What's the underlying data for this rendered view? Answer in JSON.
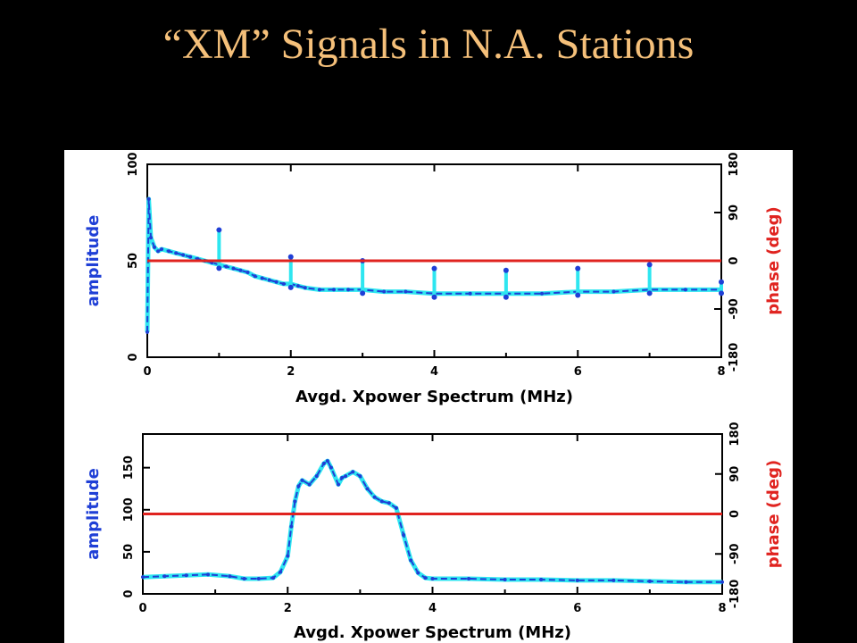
{
  "slide": {
    "title": "“XM” Signals in N.A. Stations"
  },
  "colors": {
    "title": "#f5c07a",
    "amplitude_dark": "#1f3fd6",
    "amplitude_light": "#2ee6f0",
    "phase": "#e0231f",
    "axis": "#000000"
  },
  "chart_data": [
    {
      "type": "line",
      "xlabel": "Avgd. Xpower Spectrum (MHz)",
      "ylabel": "amplitude",
      "y2label": "phase (deg)",
      "xlim": [
        0,
        8
      ],
      "ylim": [
        0,
        100
      ],
      "y2lim": [
        -180,
        180
      ],
      "x_ticks": [
        "0",
        "2",
        "4",
        "6",
        "8"
      ],
      "y_ticks": [
        "0",
        "50",
        "100"
      ],
      "y2_ticks": [
        "-180",
        "-90",
        "0",
        "90",
        "180"
      ],
      "series": [
        {
          "role": "amplitude",
          "x": [
            0,
            0.02,
            0.05,
            0.1,
            0.15,
            0.2,
            0.3,
            0.4,
            0.5,
            0.6,
            0.7,
            0.8,
            0.9,
            1.0,
            1.1,
            1.2,
            1.3,
            1.4,
            1.5,
            1.6,
            1.7,
            1.8,
            1.9,
            2.0,
            2.1,
            2.2,
            2.4,
            2.6,
            2.8,
            3.0,
            3.3,
            3.6,
            4.0,
            4.5,
            5.0,
            5.5,
            6.0,
            6.5,
            7.0,
            7.5,
            8.0
          ],
          "y": [
            13,
            82,
            62,
            57,
            55,
            56,
            55,
            54,
            53,
            52,
            51,
            50,
            49,
            48,
            47,
            46,
            45,
            44,
            42,
            41,
            40,
            39,
            38,
            38,
            37,
            36,
            35,
            35,
            35,
            35,
            34,
            34,
            33,
            33,
            33,
            33,
            34,
            34,
            35,
            35,
            35
          ]
        },
        {
          "role": "amplitude-spikes",
          "x": [
            1.0,
            2.0,
            3.0,
            4.0,
            5.0,
            6.0,
            7.0,
            8.0
          ],
          "y": [
            66,
            52,
            50,
            46,
            45,
            46,
            48,
            39
          ]
        },
        {
          "role": "phase",
          "x": [
            0,
            8
          ],
          "y": [
            0,
            0
          ]
        }
      ]
    },
    {
      "type": "line",
      "xlabel": "Avgd. Xpower Spectrum (MHz)",
      "ylabel": "amplitude",
      "y2label": "phase (deg)",
      "xlim": [
        0,
        8
      ],
      "ylim": [
        0,
        190
      ],
      "y2lim": [
        -180,
        180
      ],
      "x_ticks": [
        "0",
        "2",
        "4",
        "6",
        "8"
      ],
      "y_ticks": [
        "0",
        "50",
        "100",
        "150"
      ],
      "y2_ticks": [
        "-180",
        "-90",
        "0",
        "90",
        "180"
      ],
      "series": [
        {
          "role": "amplitude",
          "x": [
            0,
            0.3,
            0.6,
            0.9,
            1.2,
            1.4,
            1.6,
            1.8,
            1.9,
            2.0,
            2.05,
            2.1,
            2.15,
            2.2,
            2.3,
            2.4,
            2.5,
            2.55,
            2.6,
            2.7,
            2.75,
            2.8,
            2.9,
            3.0,
            3.1,
            3.2,
            3.3,
            3.4,
            3.5,
            3.6,
            3.7,
            3.8,
            3.9,
            4.0,
            4.5,
            5.0,
            5.5,
            6.0,
            6.5,
            7.0,
            7.5,
            8.0
          ],
          "y": [
            20,
            21,
            22,
            23,
            21,
            18,
            18,
            19,
            26,
            45,
            80,
            110,
            128,
            135,
            130,
            140,
            155,
            158,
            150,
            130,
            138,
            140,
            145,
            140,
            125,
            115,
            110,
            108,
            102,
            70,
            40,
            25,
            19,
            18,
            18,
            17,
            17,
            16,
            16,
            15,
            14,
            14
          ]
        },
        {
          "role": "phase",
          "x": [
            0,
            8
          ],
          "y": [
            0,
            0
          ]
        }
      ]
    }
  ]
}
